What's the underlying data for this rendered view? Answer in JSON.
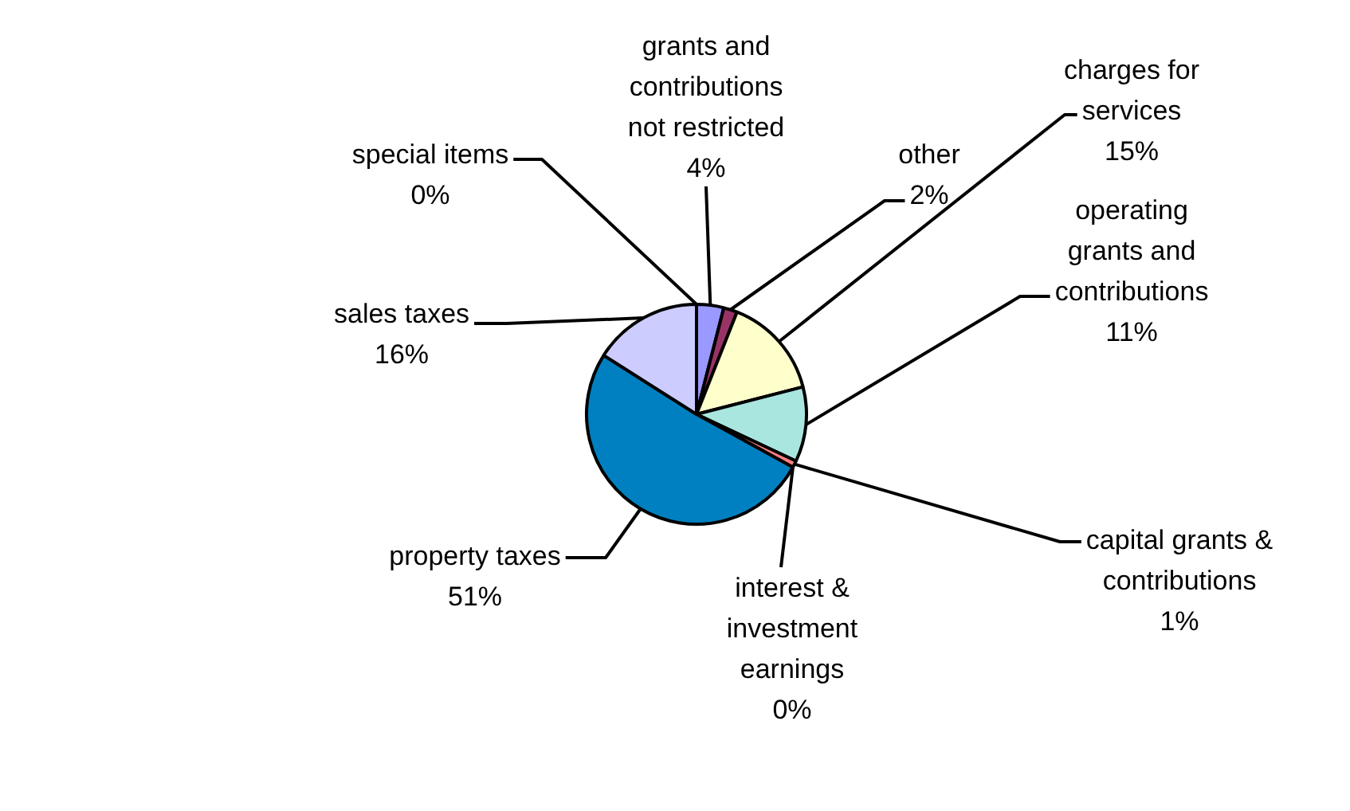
{
  "chart_data": {
    "type": "pie",
    "categories": [
      "grants and contributions not restricted",
      "other",
      "charges for services",
      "operating grants and contributions",
      "capital grants & contributions",
      "interest & investment earnings",
      "property taxes",
      "sales taxes",
      "special items"
    ],
    "values": [
      4,
      2,
      15,
      11,
      1,
      0,
      51,
      16,
      0
    ],
    "value_labels": [
      "4%",
      "2%",
      "15%",
      "11%",
      "1%",
      "0%",
      "51%",
      "16%",
      "0%"
    ],
    "colors": [
      "#9999ff",
      "#993366",
      "#ffffcc",
      "#aae6e0",
      "#ff8080",
      "#660066",
      "#0080c0",
      "#ccccff",
      "#000080"
    ],
    "legend": false
  }
}
